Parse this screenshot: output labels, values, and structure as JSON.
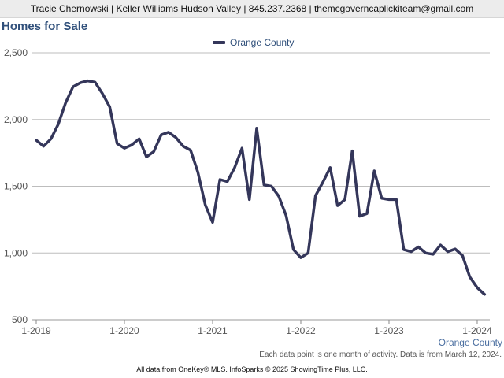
{
  "header": {
    "contact_line": "Tracie Chernowski | Keller Williams Hudson Valley | 845.237.2368 | themcgoverncaplickiteam@gmail.com"
  },
  "footer": {
    "county_label": "Orange County",
    "note": "Each data point is one month of activity. Data is from March 12, 2024.",
    "source": "All data from OneKey® MLS. InfoSparks © 2025 ShowingTime Plus, LLC."
  },
  "colors": {
    "series_line": "#34365a",
    "title": "#2f4f7a",
    "grid": "#bdbdbd"
  },
  "chart_data": {
    "type": "line",
    "title": "Homes for Sale",
    "legend_position": "top-center",
    "grid": true,
    "ylim": [
      500,
      2500
    ],
    "y_ticks": [
      500,
      1000,
      1500,
      2000,
      2500
    ],
    "y_tick_labels": [
      "500",
      "1,000",
      "1,500",
      "2,000",
      "2,500"
    ],
    "x_ticks": [
      "2019-01",
      "2020-01",
      "2021-01",
      "2022-01",
      "2023-01",
      "2024-01"
    ],
    "x_tick_labels": [
      "1-2019",
      "1-2020",
      "1-2021",
      "1-2022",
      "1-2023",
      "1-2024"
    ],
    "x": [
      "2019-01",
      "2019-02",
      "2019-03",
      "2019-04",
      "2019-05",
      "2019-06",
      "2019-07",
      "2019-08",
      "2019-09",
      "2019-10",
      "2019-11",
      "2019-12",
      "2020-01",
      "2020-02",
      "2020-03",
      "2020-04",
      "2020-05",
      "2020-06",
      "2020-07",
      "2020-08",
      "2020-09",
      "2020-10",
      "2020-11",
      "2020-12",
      "2021-01",
      "2021-02",
      "2021-03",
      "2021-04",
      "2021-05",
      "2021-06",
      "2021-07",
      "2021-08",
      "2021-09",
      "2021-10",
      "2021-11",
      "2021-12",
      "2022-01",
      "2022-02",
      "2022-03",
      "2022-04",
      "2022-05",
      "2022-06",
      "2022-07",
      "2022-08",
      "2022-09",
      "2022-10",
      "2022-11",
      "2022-12",
      "2023-01",
      "2023-02",
      "2023-03",
      "2023-04",
      "2023-05",
      "2023-06",
      "2023-07",
      "2023-08",
      "2023-09",
      "2023-10",
      "2023-11",
      "2023-12",
      "2024-01",
      "2024-02"
    ],
    "series": [
      {
        "name": "Orange County",
        "values": [
          1845,
          1800,
          1855,
          1965,
          2125,
          2245,
          2275,
          2290,
          2280,
          2195,
          2095,
          1820,
          1785,
          1810,
          1855,
          1720,
          1760,
          1885,
          1905,
          1865,
          1800,
          1770,
          1605,
          1360,
          1230,
          1550,
          1535,
          1640,
          1785,
          1400,
          1935,
          1510,
          1500,
          1425,
          1280,
          1025,
          965,
          1000,
          1430,
          1530,
          1640,
          1355,
          1400,
          1765,
          1275,
          1295,
          1615,
          1410,
          1400,
          1400,
          1025,
          1010,
          1045,
          1000,
          990,
          1060,
          1010,
          1030,
          980,
          820,
          740,
          690
        ]
      }
    ]
  }
}
